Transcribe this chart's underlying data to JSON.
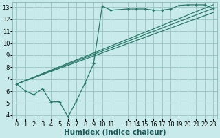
{
  "xlabel": "Humidex (Indice chaleur)",
  "background_color": "#c8eaea",
  "grid_color": "#a0c8c8",
  "line_color": "#2a7a6a",
  "xlim": [
    -0.5,
    23.5
  ],
  "ylim": [
    3.7,
    13.4
  ],
  "xticks": [
    0,
    1,
    2,
    3,
    4,
    5,
    6,
    7,
    8,
    9,
    10,
    11,
    13,
    14,
    15,
    16,
    17,
    18,
    19,
    20,
    21,
    22,
    23
  ],
  "yticks": [
    4,
    5,
    6,
    7,
    8,
    9,
    10,
    11,
    12,
    13
  ],
  "series1_x": [
    0,
    1,
    2,
    3,
    4,
    5,
    6,
    7,
    8,
    9,
    10,
    11,
    13,
    14,
    15,
    16,
    17,
    18,
    19,
    20,
    21,
    22,
    23
  ],
  "series1_y": [
    6.6,
    6.0,
    5.7,
    6.2,
    5.1,
    5.1,
    3.85,
    5.2,
    6.7,
    8.3,
    13.1,
    12.75,
    12.85,
    12.85,
    12.85,
    12.75,
    12.75,
    12.85,
    13.15,
    13.2,
    13.2,
    13.2,
    12.9
  ],
  "line2_x": [
    0,
    23
  ],
  "line2_y": [
    6.6,
    12.9
  ],
  "line3_x": [
    0,
    23
  ],
  "line3_y": [
    6.6,
    13.2
  ],
  "line4_x": [
    0,
    23
  ],
  "line4_y": [
    6.6,
    12.55
  ],
  "xlabel_color": "#1a5a5a",
  "xlabel_fontsize": 7.5,
  "tick_fontsize": 6.0
}
